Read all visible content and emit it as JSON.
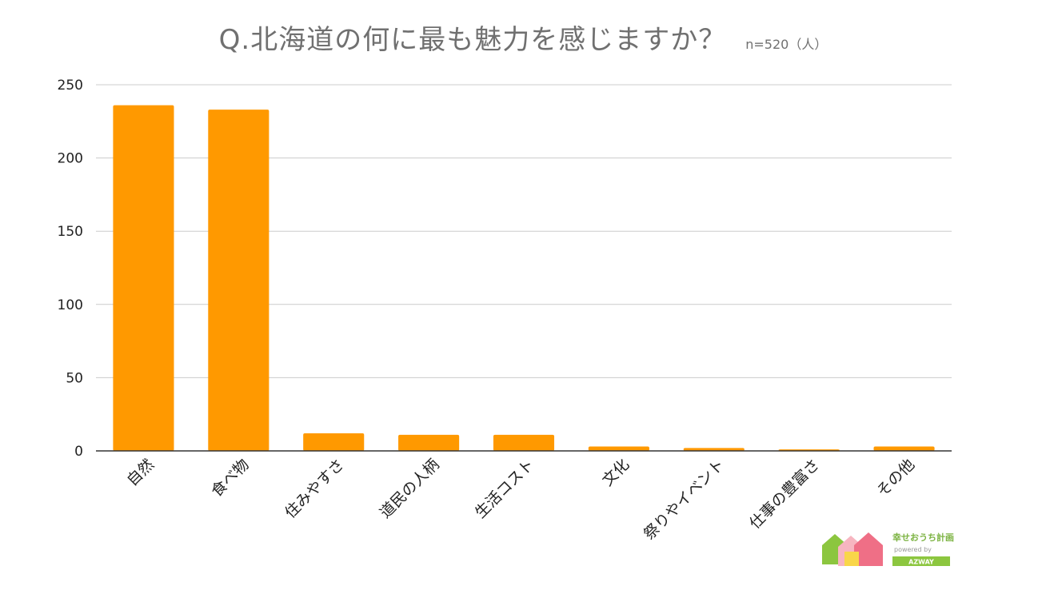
{
  "chart_data": {
    "type": "bar",
    "title": "Q.北海道の何に最も魅力を感じますか？",
    "subtitle": "n=520（人）",
    "categories": [
      "自然",
      "食べ物",
      "住みやすさ",
      "道民の人柄",
      "生活コスト",
      "文化",
      "祭りやイベント",
      "仕事の豊富さ",
      "その他"
    ],
    "values": [
      236,
      233,
      12,
      11,
      11,
      3,
      2,
      1,
      3
    ],
    "ylim": [
      0,
      250
    ],
    "yticks": [
      0,
      50,
      100,
      150,
      200,
      250
    ],
    "grid": true,
    "bar_color": "#ff9900"
  },
  "logo": {
    "text": "幸せおうち計画",
    "sub": "powered by",
    "brand": "AZWAY"
  }
}
